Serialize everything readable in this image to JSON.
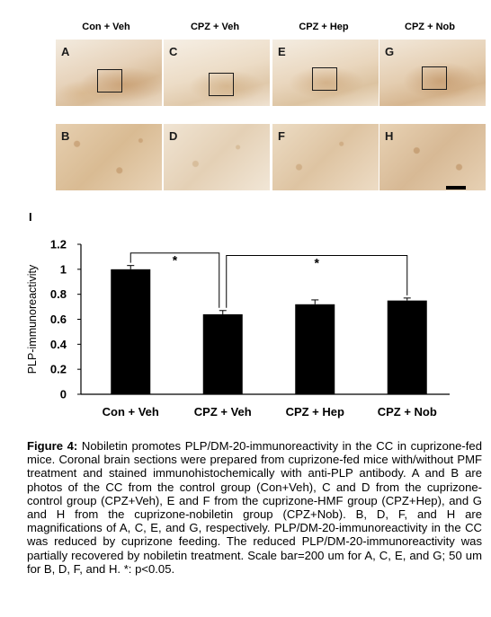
{
  "panels": {
    "columns": [
      {
        "title": "Con + Veh",
        "top_label": "A",
        "bottom_label": "B"
      },
      {
        "title": "CPZ + Veh",
        "top_label": "C",
        "bottom_label": "D"
      },
      {
        "title": "CPZ + Hep",
        "top_label": "E",
        "bottom_label": "F"
      },
      {
        "title": "CPZ + Nob",
        "top_label": "G",
        "bottom_label": "H"
      }
    ]
  },
  "figure_letter": "I",
  "chart_data": {
    "type": "bar",
    "categories": [
      "Con + Veh",
      "CPZ + Veh",
      "CPZ + Hep",
      "CPZ + Nob"
    ],
    "values": [
      1.0,
      0.64,
      0.72,
      0.75
    ],
    "errors": [
      0.03,
      0.03,
      0.035,
      0.02
    ],
    "ylabel": "PLP-immunoreactivity",
    "ylim": [
      0,
      1.2
    ],
    "yticks": [
      "0",
      "0.2",
      "0.4",
      "0.6",
      "0.8",
      "1",
      "1.2"
    ],
    "ytick_values": [
      0,
      0.2,
      0.4,
      0.6,
      0.8,
      1.0,
      1.2
    ],
    "bar_color": "#000000",
    "grid": false,
    "significance": [
      {
        "from": 0,
        "to": 1,
        "label": "*"
      },
      {
        "from": 1,
        "to": 3,
        "label": "*"
      }
    ]
  },
  "caption": {
    "label": "Figure 4:",
    "text": " Nobiletin promotes PLP/DM-20-immunoreactivity in the CC in cuprizone-fed mice. Coronal brain sections were prepared from cuprizone-fed mice with/without PMF treatment and stained immunohistochemically with anti-PLP antibody. A and B are photos of the CC from the control group (Con+Veh), C and D from the cuprizone-control group (CPZ+Veh), E and F from the cuprizone-HMF group (CPZ+Hep), and G and H from the cuprizone-nobiletin group (CPZ+Nob). B, D, F, and H are magnifications of A, C, E, and G, respectively. PLP/DM-20-immunoreactivity in the CC was reduced by cuprizone feeding. The reduced PLP/DM-20-immunoreactivity was partially recovered by nobiletin treatment. Scale bar=200 um for A, C, E, and G; 50 um for B, D, F, and H. *: p<0.05."
  }
}
